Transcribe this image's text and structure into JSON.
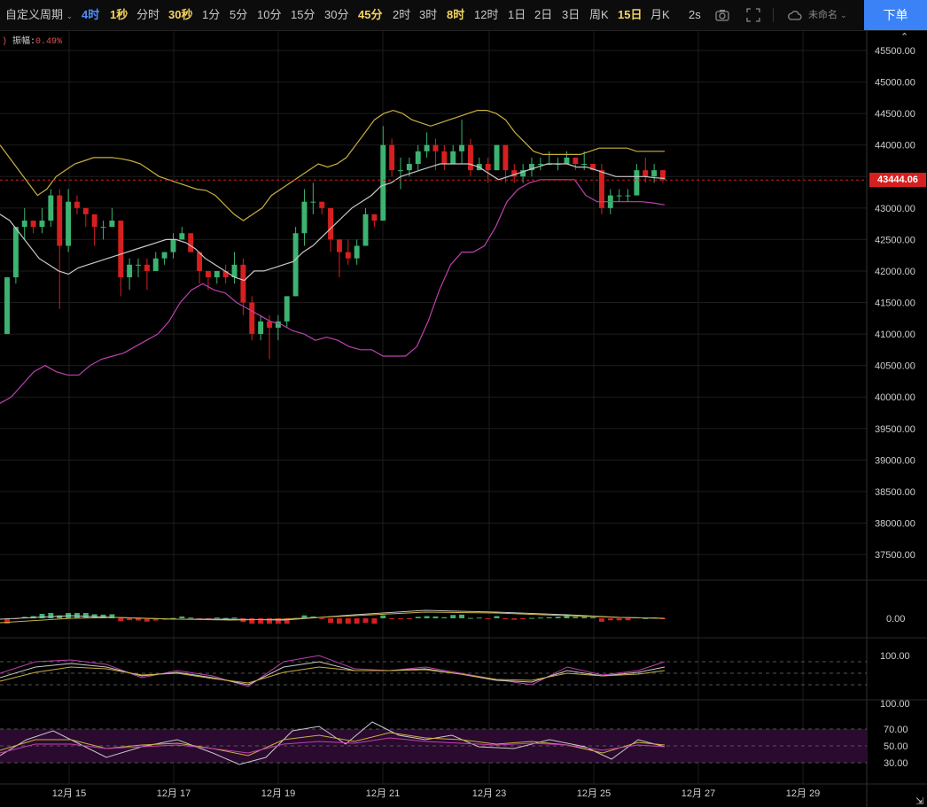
{
  "toolbar": {
    "period_custom": "自定义周期",
    "items": [
      {
        "label": "4时",
        "state": "active"
      },
      {
        "label": "1秒",
        "state": "hl"
      },
      {
        "label": "分时",
        "state": "normal"
      },
      {
        "label": "30秒",
        "state": "hl"
      },
      {
        "label": "1分",
        "state": "normal"
      },
      {
        "label": "5分",
        "state": "normal"
      },
      {
        "label": "10分",
        "state": "normal"
      },
      {
        "label": "15分",
        "state": "normal"
      },
      {
        "label": "30分",
        "state": "normal"
      },
      {
        "label": "45分",
        "state": "hl"
      },
      {
        "label": "2时",
        "state": "normal"
      },
      {
        "label": "3时",
        "state": "normal"
      },
      {
        "label": "8时",
        "state": "hl"
      },
      {
        "label": "12时",
        "state": "normal"
      },
      {
        "label": "1日",
        "state": "normal"
      },
      {
        "label": "2日",
        "state": "normal"
      },
      {
        "label": "3日",
        "state": "normal"
      },
      {
        "label": "周K",
        "state": "normal"
      },
      {
        "label": "15日",
        "state": "hl"
      },
      {
        "label": "月K",
        "state": "normal"
      }
    ],
    "refresh": "2s",
    "layout_name": "未命名",
    "order_button": "下单",
    "icons": [
      "camera-icon",
      "fullscreen-icon",
      "cloud-icon",
      "chevron-down-icon"
    ]
  },
  "header": {
    "amp_label": "振幅:",
    "amp_value": "0.49%",
    "paren": ")"
  },
  "last_price": "43444.06",
  "colors": {
    "up": "#3cb371",
    "down": "#d61f1f",
    "mid": "#c8c8c8",
    "upper": "#c8b040",
    "lower": "#c040b0",
    "grid": "#1c1c1c"
  },
  "chart_data": {
    "type": "candlestick",
    "interval": "4时",
    "price_ylim": [
      37000,
      45800
    ],
    "price_yticks": [
      "45500.00",
      "45000.00",
      "44500.00",
      "44000.00",
      "43500.00",
      "43000.00",
      "42500.00",
      "42000.00",
      "41500.00",
      "41000.00",
      "40500.00",
      "40000.00",
      "39500.00",
      "39000.00",
      "38500.00",
      "38000.00",
      "37500.00"
    ],
    "x_ticks": [
      "12月 15",
      "12月 17",
      "12月 19",
      "12月 21",
      "12月 23",
      "12月 25",
      "12月 27",
      "12月 29"
    ],
    "candles": [
      [
        41000,
        41900,
        41000,
        41900
      ],
      [
        41900,
        42700,
        41800,
        42700
      ],
      [
        42700,
        43000,
        42500,
        42800
      ],
      [
        42800,
        42800,
        42600,
        42700
      ],
      [
        42700,
        43000,
        42600,
        42800
      ],
      [
        42800,
        43300,
        42700,
        43200
      ],
      [
        43200,
        43300,
        41400,
        42400
      ],
      [
        42400,
        43300,
        42300,
        43100
      ],
      [
        43100,
        43200,
        42900,
        43000
      ],
      [
        43000,
        43000,
        42700,
        42900
      ],
      [
        42900,
        42900,
        42400,
        42700
      ],
      [
        42700,
        42800,
        42500,
        42700
      ],
      [
        42700,
        43000,
        42700,
        42800
      ],
      [
        42800,
        42800,
        41600,
        41900
      ],
      [
        41900,
        42200,
        41700,
        42100
      ],
      [
        42100,
        42200,
        41900,
        42100
      ],
      [
        42100,
        42200,
        41700,
        42000
      ],
      [
        42000,
        42300,
        42000,
        42200
      ],
      [
        42200,
        42300,
        42100,
        42300
      ],
      [
        42300,
        42600,
        42200,
        42500
      ],
      [
        42500,
        42700,
        42500,
        42600
      ],
      [
        42600,
        42600,
        42300,
        42300
      ],
      [
        42300,
        42300,
        41800,
        42000
      ],
      [
        42000,
        42000,
        41700,
        41900
      ],
      [
        41900,
        42000,
        41800,
        42000
      ],
      [
        42000,
        42100,
        41800,
        41900
      ],
      [
        41900,
        42300,
        41800,
        42100
      ],
      [
        42100,
        42200,
        41300,
        41500
      ],
      [
        41500,
        41600,
        40900,
        41000
      ],
      [
        41000,
        41300,
        40900,
        41200
      ],
      [
        41200,
        41300,
        40600,
        41100
      ],
      [
        41100,
        41300,
        40900,
        41200
      ],
      [
        41200,
        41600,
        41100,
        41600
      ],
      [
        41600,
        42700,
        41600,
        42600
      ],
      [
        42600,
        43300,
        42400,
        43100
      ],
      [
        43100,
        43400,
        42900,
        43100
      ],
      [
        43100,
        43100,
        42900,
        43000
      ],
      [
        43000,
        43000,
        42300,
        42500
      ],
      [
        42500,
        42500,
        41900,
        42300
      ],
      [
        42300,
        42500,
        42100,
        42200
      ],
      [
        42200,
        42500,
        42100,
        42400
      ],
      [
        42400,
        43000,
        42400,
        42900
      ],
      [
        42900,
        42900,
        42700,
        42800
      ],
      [
        42800,
        44300,
        42800,
        44000
      ],
      [
        44000,
        44100,
        43500,
        43600
      ],
      [
        43600,
        43800,
        43300,
        43600
      ],
      [
        43600,
        43800,
        43500,
        43700
      ],
      [
        43700,
        44000,
        43600,
        43900
      ],
      [
        43900,
        44200,
        43800,
        44000
      ],
      [
        44000,
        44100,
        43600,
        43900
      ],
      [
        43900,
        44000,
        43600,
        43700
      ],
      [
        43700,
        44000,
        43700,
        43900
      ],
      [
        43900,
        44400,
        43700,
        44000
      ],
      [
        44000,
        44100,
        43500,
        43600
      ],
      [
        43600,
        43800,
        43600,
        43700
      ],
      [
        43700,
        43800,
        43400,
        43600
      ],
      [
        43600,
        44000,
        43600,
        44000
      ],
      [
        44000,
        44000,
        43400,
        43600
      ],
      [
        43600,
        43700,
        43400,
        43500
      ],
      [
        43500,
        43700,
        43400,
        43600
      ],
      [
        43600,
        43800,
        43500,
        43700
      ],
      [
        43700,
        43800,
        43600,
        43700
      ],
      [
        43700,
        43900,
        43700,
        43700
      ],
      [
        43700,
        43800,
        43600,
        43700
      ],
      [
        43700,
        43900,
        43700,
        43800
      ],
      [
        43800,
        43800,
        43600,
        43700
      ],
      [
        43700,
        43900,
        43600,
        43700
      ],
      [
        43700,
        43700,
        43600,
        43600
      ],
      [
        43600,
        43700,
        42900,
        43000
      ],
      [
        43000,
        43300,
        42900,
        43200
      ],
      [
        43200,
        43300,
        43100,
        43200
      ],
      [
        43200,
        43300,
        43100,
        43200
      ],
      [
        43200,
        43700,
        43200,
        43600
      ],
      [
        43600,
        43800,
        43400,
        43500
      ],
      [
        43500,
        43700,
        43400,
        43600
      ],
      [
        43600,
        43600,
        43400,
        43444
      ]
    ],
    "boll_upper": [
      44000,
      43800,
      43600,
      43400,
      43200,
      43300,
      43500,
      43600,
      43700,
      43750,
      43800,
      43800,
      43800,
      43780,
      43750,
      43700,
      43600,
      43500,
      43450,
      43400,
      43350,
      43300,
      43280,
      43200,
      43050,
      42900,
      42800,
      42900,
      43000,
      43200,
      43300,
      43400,
      43500,
      43600,
      43700,
      43650,
      43700,
      43800,
      44000,
      44200,
      44400,
      44500,
      44550,
      44500,
      44400,
      44350,
      44300,
      44350,
      44400,
      44450,
      44500,
      44550,
      44550,
      44500,
      44400,
      44200,
      44050,
      43900,
      43850,
      43850,
      43850,
      43850,
      43850,
      43900,
      43950,
      43950,
      43950,
      43950,
      43900,
      43900,
      43900,
      43900
    ],
    "boll_mid": [
      42900,
      42800,
      42600,
      42400,
      42200,
      42100,
      42000,
      41950,
      42050,
      42100,
      42150,
      42200,
      42250,
      42300,
      42350,
      42400,
      42450,
      42500,
      42500,
      42450,
      42350,
      42200,
      42100,
      42000,
      41900,
      41850,
      42000,
      42000,
      42050,
      42100,
      42150,
      42300,
      42400,
      42550,
      42700,
      42850,
      43000,
      43100,
      43200,
      43350,
      43400,
      43500,
      43550,
      43600,
      43650,
      43700,
      43700,
      43700,
      43700,
      43650,
      43550,
      43450,
      43500,
      43550,
      43600,
      43650,
      43700,
      43700,
      43700,
      43650,
      43650,
      43600,
      43550,
      43500,
      43500,
      43500,
      43500,
      43480,
      43470
    ],
    "boll_lower": [
      39900,
      40000,
      40200,
      40400,
      40500,
      40400,
      40350,
      40350,
      40500,
      40600,
      40650,
      40700,
      40800,
      40900,
      41000,
      41200,
      41500,
      41700,
      41800,
      41700,
      41650,
      41500,
      41400,
      41300,
      41200,
      41150,
      41050,
      41000,
      40900,
      40950,
      40900,
      40800,
      40750,
      40750,
      40650,
      40650,
      40650,
      40800,
      41200,
      41700,
      42100,
      42300,
      42300,
      42400,
      42700,
      43100,
      43300,
      43400,
      43450,
      43450,
      43450,
      43450,
      43200,
      43100,
      43100,
      43100,
      43100,
      43100,
      43080,
      43050
    ],
    "macd_label": "0.00",
    "kdj_ticks": [
      "100.00"
    ],
    "rsi_ticks": [
      "100.00",
      "70.00",
      "50.00",
      "30.00"
    ]
  }
}
